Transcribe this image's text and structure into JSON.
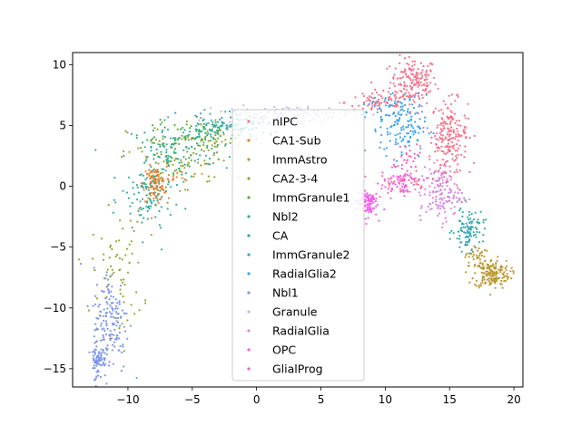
{
  "chart_data": {
    "type": "scatter",
    "title": "",
    "xlabel": "",
    "ylabel": "",
    "xlim": [
      -14.3,
      20.7
    ],
    "ylim": [
      -16.5,
      11.0
    ],
    "xticks": [
      -10,
      -5,
      0,
      5,
      10,
      15,
      20
    ],
    "yticks": [
      -15,
      -10,
      -5,
      0,
      5,
      10
    ],
    "grid": false,
    "legend": {
      "placement": "center",
      "entries": [
        "nIPC",
        "CA1-Sub",
        "ImmAstro",
        "CA2-3-4",
        "ImmGranule1",
        "Nbl2",
        "CA",
        "ImmGranule2",
        "RadialGlia2",
        "Nbl1",
        "Granule",
        "RadialGlia",
        "OPC",
        "GlialProg"
      ]
    },
    "series": [
      {
        "name": "nIPC",
        "color": "#f77189",
        "clusters": [
          {
            "x": 12.2,
            "y": 8.6,
            "sx": 0.9,
            "sy": 1.0,
            "n": 170
          },
          {
            "x": 15.0,
            "y": 4.5,
            "sx": 0.7,
            "sy": 1.3,
            "n": 150
          },
          {
            "x": 9.5,
            "y": 6.9,
            "sx": 1.3,
            "sy": 0.5,
            "n": 70
          },
          {
            "x": 14.8,
            "y": 1.8,
            "sx": 0.9,
            "sy": 1.8,
            "n": 60
          },
          {
            "x": 11.3,
            "y": 0.3,
            "sx": 1.0,
            "sy": 0.5,
            "n": 30
          }
        ]
      },
      {
        "name": "CA1-Sub",
        "color": "#e68332",
        "clusters": [
          {
            "x": -7.9,
            "y": 0.2,
            "sx": 0.45,
            "sy": 0.7,
            "n": 120
          },
          {
            "x": -6.2,
            "y": 0.6,
            "sx": 1.2,
            "sy": 0.5,
            "n": 12
          }
        ]
      },
      {
        "name": "ImmAstro",
        "color": "#bb9832",
        "clusters": [
          {
            "x": 18.3,
            "y": -7.2,
            "sx": 0.7,
            "sy": 0.6,
            "n": 170
          },
          {
            "x": 17.0,
            "y": -5.8,
            "sx": 0.4,
            "sy": 0.5,
            "n": 40
          }
        ]
      },
      {
        "name": "CA2-3-4",
        "color": "#97a431",
        "clusters": [
          {
            "x": -6.0,
            "y": 2.2,
            "sx": 2.0,
            "sy": 1.6,
            "n": 90
          },
          {
            "x": -10.8,
            "y": -7.0,
            "sx": 1.0,
            "sy": 2.5,
            "n": 70
          },
          {
            "x": -3.5,
            "y": 4.0,
            "sx": 1.2,
            "sy": 0.6,
            "n": 40
          }
        ]
      },
      {
        "name": "ImmGranule1",
        "color": "#50b131",
        "clusters": [
          {
            "x": -5.0,
            "y": 3.6,
            "sx": 1.8,
            "sy": 0.9,
            "n": 40
          }
        ]
      },
      {
        "name": "Nbl2",
        "color": "#34ae91",
        "clusters": [
          {
            "x": -6.5,
            "y": 2.8,
            "sx": 1.6,
            "sy": 1.2,
            "n": 120
          },
          {
            "x": -3.0,
            "y": 4.6,
            "sx": 1.5,
            "sy": 0.5,
            "n": 80
          }
        ]
      },
      {
        "name": "CA",
        "color": "#37aba4",
        "clusters": [
          {
            "x": -8.5,
            "y": -1.2,
            "sx": 1.0,
            "sy": 1.6,
            "n": 90
          },
          {
            "x": 16.5,
            "y": -3.5,
            "sx": 0.6,
            "sy": 0.9,
            "n": 60
          }
        ]
      },
      {
        "name": "ImmGranule2",
        "color": "#39a7b7",
        "clusters": [
          {
            "x": -1.5,
            "y": 5.4,
            "sx": 1.6,
            "sy": 0.5,
            "n": 70
          },
          {
            "x": 16.2,
            "y": -3.8,
            "sx": 0.5,
            "sy": 0.7,
            "n": 40
          }
        ]
      },
      {
        "name": "RadialGlia2",
        "color": "#3ba3ec",
        "clusters": [
          {
            "x": 11.4,
            "y": 4.9,
            "sx": 0.9,
            "sy": 1.3,
            "n": 120
          },
          {
            "x": 10.0,
            "y": 6.3,
            "sx": 1.0,
            "sy": 0.6,
            "n": 40
          }
        ]
      },
      {
        "name": "Nbl1",
        "color": "#7c96e9",
        "clusters": [
          {
            "x": -11.3,
            "y": -11.0,
            "sx": 0.7,
            "sy": 2.2,
            "n": 150
          },
          {
            "x": -12.3,
            "y": -14.0,
            "sx": 0.3,
            "sy": 0.9,
            "n": 70
          }
        ]
      },
      {
        "name": "Granule",
        "color": "#c8b4e8",
        "clusters": [
          {
            "x": 2.5,
            "y": 5.9,
            "sx": 2.5,
            "sy": 0.35,
            "n": 120
          }
        ]
      },
      {
        "name": "RadialGlia",
        "color": "#d486e8",
        "clusters": [
          {
            "x": 14.3,
            "y": -0.6,
            "sx": 0.8,
            "sy": 1.1,
            "n": 130
          }
        ]
      },
      {
        "name": "OPC",
        "color": "#f45deb",
        "clusters": [
          {
            "x": 8.6,
            "y": -1.3,
            "sx": 0.4,
            "sy": 0.6,
            "n": 90
          },
          {
            "x": 11.0,
            "y": 0.3,
            "sx": 0.7,
            "sy": 0.6,
            "n": 50
          }
        ]
      },
      {
        "name": "GlialProg",
        "color": "#f75fb9",
        "clusters": [
          {
            "x": 11.8,
            "y": 1.5,
            "sx": 0.6,
            "sy": 1.0,
            "n": 40
          }
        ]
      }
    ]
  }
}
